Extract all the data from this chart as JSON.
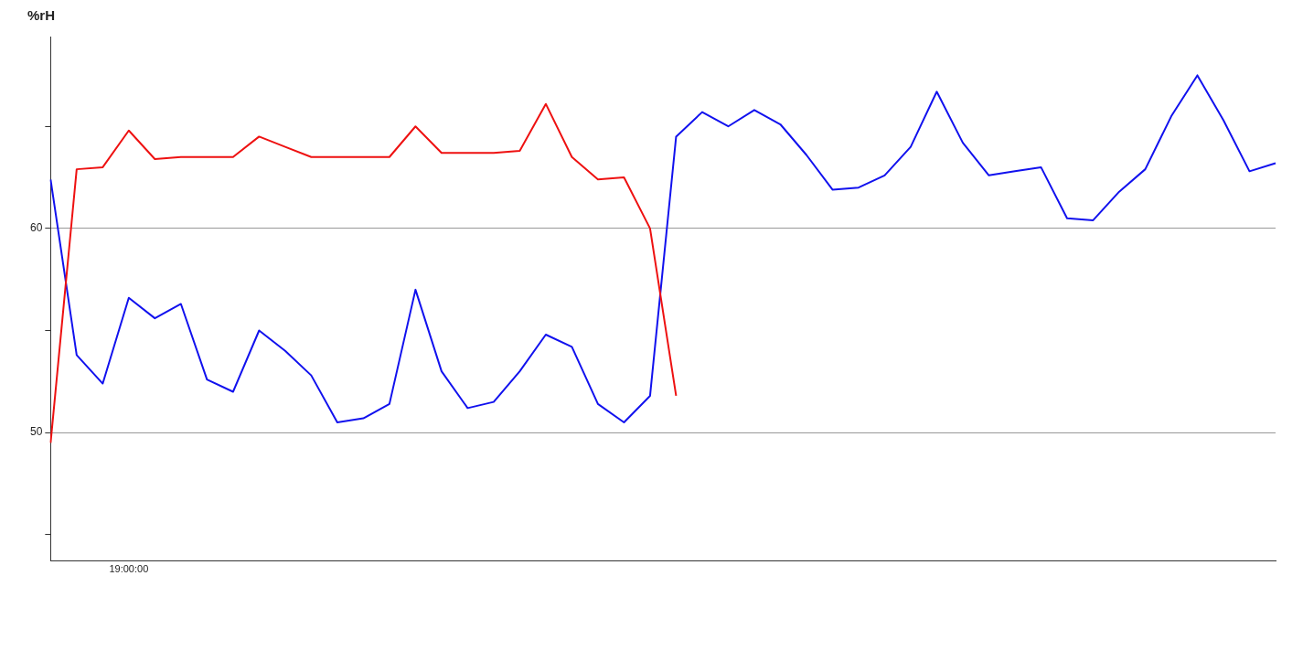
{
  "chart_data": {
    "type": "line",
    "ylabel": "%rH",
    "categories": [
      null,
      null,
      null,
      "19:00:00",
      null,
      null,
      null,
      null,
      null,
      null,
      null,
      null,
      null,
      null,
      null,
      null,
      null,
      null,
      null,
      null,
      null,
      null,
      null,
      null,
      null,
      null,
      null,
      null,
      null,
      null,
      null,
      null,
      null,
      null,
      null,
      null,
      null,
      null,
      null,
      null,
      null,
      null,
      null,
      null,
      null,
      null,
      null,
      null
    ],
    "ylim": [
      43.7,
      69.4
    ],
    "yticks": [
      {
        "value": 45,
        "label": null
      },
      50,
      {
        "value": 55,
        "label": null
      },
      60,
      {
        "value": 65,
        "label": null
      }
    ],
    "grid": "y",
    "line_style": "solid",
    "marker": "none",
    "series": [
      {
        "color": "#ee1111",
        "values": [
          49.5,
          62.9,
          63.0,
          64.8,
          63.4,
          63.5,
          63.5,
          63.5,
          64.5,
          64.0,
          63.5,
          63.5,
          63.5,
          63.5,
          65.0,
          63.7,
          63.7,
          63.7,
          63.8,
          66.1,
          63.5,
          62.4,
          62.5,
          60.0,
          51.8,
          null,
          null,
          null,
          null,
          null,
          null,
          null,
          null,
          null,
          null,
          null,
          null,
          null,
          null,
          null,
          null,
          null,
          null,
          null,
          null,
          null,
          null,
          null
        ]
      },
      {
        "color": "#1111ee",
        "values": [
          62.4,
          53.8,
          52.4,
          56.6,
          55.6,
          56.3,
          52.6,
          52.0,
          55.0,
          54.0,
          52.8,
          50.5,
          50.7,
          51.4,
          57.0,
          53.0,
          51.2,
          51.5,
          53.0,
          54.8,
          54.2,
          51.4,
          50.5,
          51.8,
          64.5,
          65.7,
          65.0,
          65.8,
          65.1,
          63.6,
          61.9,
          62.0,
          62.6,
          64.0,
          66.7,
          64.2,
          62.6,
          62.8,
          63.0,
          60.5,
          60.4,
          61.8,
          62.9,
          65.5,
          67.5,
          65.3,
          62.8,
          63.2
        ]
      }
    ]
  }
}
